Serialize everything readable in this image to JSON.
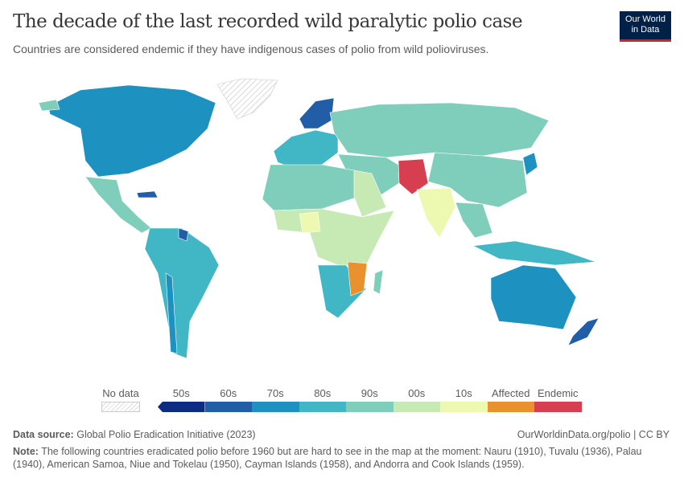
{
  "header": {
    "title": "The decade of the last recorded wild paralytic polio case",
    "subtitle": "Countries are considered endemic if they have indigenous cases of polio from wild polioviruses.",
    "logo_line1": "Our World",
    "logo_line2": "in Data"
  },
  "legend": {
    "no_data_label": "No data",
    "bins": [
      {
        "label": "50s",
        "color": "#0c2c84"
      },
      {
        "label": "60s",
        "color": "#225ea8"
      },
      {
        "label": "70s",
        "color": "#1d91c0"
      },
      {
        "label": "80s",
        "color": "#41b6c4"
      },
      {
        "label": "90s",
        "color": "#7fcdbb"
      },
      {
        "label": "00s",
        "color": "#c7e9b4"
      },
      {
        "label": "10s",
        "color": "#edf8b1"
      },
      {
        "label": "Affected",
        "color": "#e8912d"
      },
      {
        "label": "Endemic",
        "color": "#d73f50"
      }
    ]
  },
  "footer": {
    "source_label": "Data source:",
    "source": "Global Polio Eradication Initiative (2023)",
    "url": "OurWorldinData.org/polio | CC BY",
    "note_label": "Note:",
    "note": "The following countries eradicated polio before 1960 but are hard to see in the map at the moment: Nauru (1910), Tuvalu (1936), Palau (1940), American Samoa, Niue and Tokelau (1950), Cayman Islands (1958), and Andorra and Cook Islands (1959)."
  }
}
